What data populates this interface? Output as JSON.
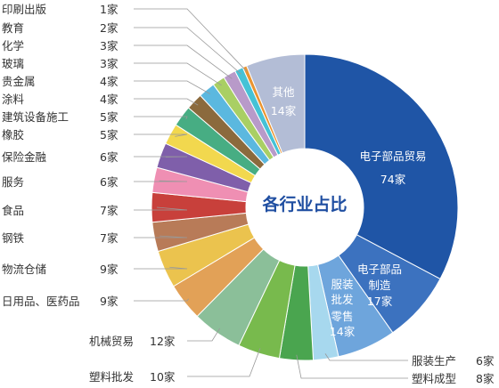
{
  "chart_data": {
    "type": "pie",
    "variant": "donut",
    "title": "各行业占比",
    "unit": "家",
    "slices": [
      {
        "name": "电子部品贸易",
        "value": 74,
        "value_label": "74家",
        "color": "#1f55a6"
      },
      {
        "name": "电子部品制造",
        "value": 17,
        "value_label": "17家",
        "color": "#3c72bf"
      },
      {
        "name": "服装批发零售",
        "value": 14,
        "value_label": "14家",
        "color": "#6ea5dc"
      },
      {
        "name": "服装生产",
        "value": 6,
        "value_label": "6家",
        "color": "#a7d8ee"
      },
      {
        "name": "塑料成型",
        "value": 8,
        "value_label": "8家",
        "color": "#4aa54f"
      },
      {
        "name": "塑料批发",
        "value": 10,
        "value_label": "10家",
        "color": "#78ba4d"
      },
      {
        "name": "机械贸易",
        "value": 12,
        "value_label": "12家",
        "color": "#8bbf99"
      },
      {
        "name": "日用品、医药品",
        "value": 9,
        "value_label": "9家",
        "color": "#e2a157"
      },
      {
        "name": "物流仓储",
        "value": 9,
        "value_label": "9家",
        "color": "#ebc34e"
      },
      {
        "name": "钢铁",
        "value": 7,
        "value_label": "7家",
        "color": "#b87b58"
      },
      {
        "name": "食品",
        "value": 7,
        "value_label": "7家",
        "color": "#c8403b"
      },
      {
        "name": "服务",
        "value": 6,
        "value_label": "6家",
        "color": "#ef8fb3"
      },
      {
        "name": "保险金融",
        "value": 6,
        "value_label": "6家",
        "color": "#7f5faa"
      },
      {
        "name": "橡胶",
        "value": 5,
        "value_label": "5家",
        "color": "#f2d84e"
      },
      {
        "name": "建筑设备施工",
        "value": 5,
        "value_label": "5家",
        "color": "#47ad83"
      },
      {
        "name": "涂料",
        "value": 4,
        "value_label": "4家",
        "color": "#8b6a3d"
      },
      {
        "name": "贵金属",
        "value": 4,
        "value_label": "4家",
        "color": "#5bb8df"
      },
      {
        "name": "玻璃",
        "value": 3,
        "value_label": "3家",
        "color": "#a9cf64"
      },
      {
        "name": "化学",
        "value": 3,
        "value_label": "3家",
        "color": "#b89ac9"
      },
      {
        "name": "教育",
        "value": 2,
        "value_label": "2家",
        "color": "#45c2d6"
      },
      {
        "name": "印刷出版",
        "value": 1,
        "value_label": "1家",
        "color": "#ea9430"
      },
      {
        "name": "其他",
        "value": 14,
        "value_label": "14家",
        "color": "#b3bdd6"
      }
    ],
    "inside_labels": {
      "电子部品贸易": [
        "电子部品贸易",
        "74家"
      ],
      "电子部品制造": [
        "电子部品",
        "制造",
        "17家"
      ],
      "服装批发零售": [
        "服装",
        "批发",
        "零售",
        "14家"
      ],
      "其他": [
        "其他",
        "14家"
      ]
    },
    "legend": "leader-line labels on left and bottom"
  }
}
